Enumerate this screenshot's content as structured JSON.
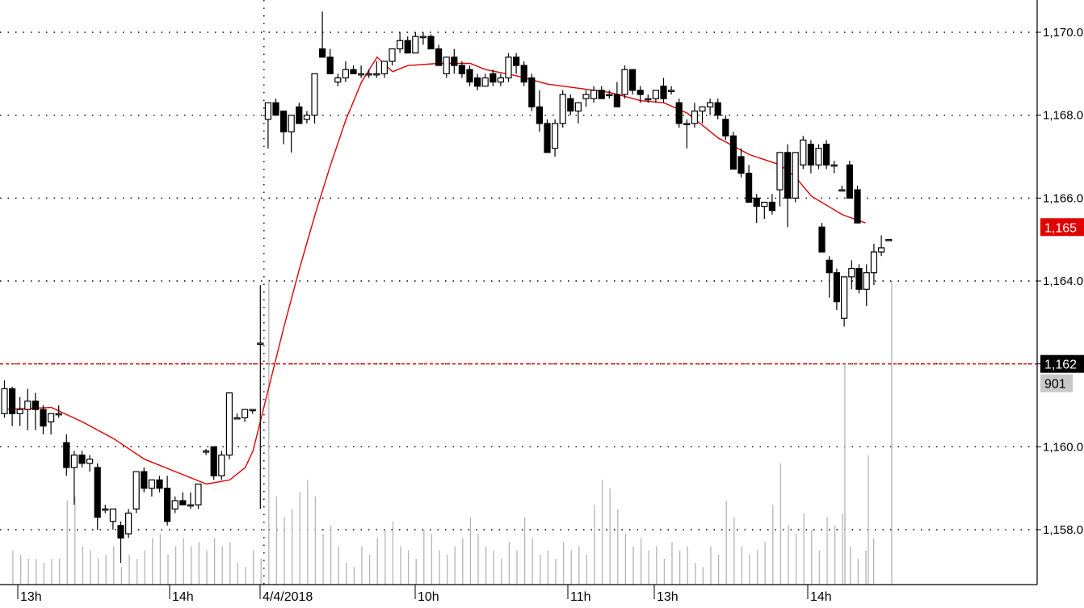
{
  "chart_data": {
    "type": "candlestick",
    "instrument_hint": "",
    "y_axis": {
      "ticks": [
        "1,170.0",
        "1,168.0",
        "1,166.0",
        "1,164.0",
        "1,162.0",
        "1,160.0",
        "1,158.0"
      ],
      "tick_values": [
        1170,
        1168,
        1166,
        1164,
        1162,
        1160,
        1158
      ],
      "ylim": [
        1156.8,
        1170.8
      ],
      "position": "right",
      "grid": "dotted"
    },
    "x_axis": {
      "labels": [
        "13h",
        "14h",
        "4/4/2018",
        "10h",
        "11h",
        "13h",
        "14h"
      ],
      "label_bar_index": [
        2,
        21,
        33,
        54,
        73,
        84,
        103
      ],
      "bar_count": 112,
      "grid_lines_at_bar": [
        33
      ]
    },
    "price_markers": [
      {
        "name": "last",
        "label": "1,165",
        "value": 1165.3,
        "color": "#e00000",
        "text_color": "#ffffff"
      },
      {
        "name": "level",
        "label": "1,162",
        "value": 1162.0,
        "color": "#000000",
        "text_color": "#ffffff"
      }
    ],
    "volume_marker": {
      "label": "901",
      "color": "#c8c8c8",
      "text_color": "#000000"
    },
    "reference_line": {
      "value": 1162.0,
      "style": "dashed",
      "color": "#e00000"
    },
    "moving_average": {
      "color": "#e00000",
      "points": [
        [
          0,
          1160.9
        ],
        [
          6,
          1160.95
        ],
        [
          10,
          1160.6
        ],
        [
          14,
          1160.2
        ],
        [
          18,
          1159.7
        ],
        [
          22,
          1159.4
        ],
        [
          26,
          1159.1
        ],
        [
          29,
          1159.2
        ],
        [
          31,
          1159.5
        ],
        [
          32,
          1159.9
        ],
        [
          34,
          1161.4
        ],
        [
          36,
          1162.9
        ],
        [
          38,
          1164.3
        ],
        [
          40,
          1165.6
        ],
        [
          42,
          1166.8
        ],
        [
          44,
          1167.9
        ],
        [
          46,
          1168.8
        ],
        [
          48,
          1169.4
        ],
        [
          50,
          1169.05
        ],
        [
          52,
          1169.2
        ],
        [
          56,
          1169.25
        ],
        [
          60,
          1169.25
        ],
        [
          62,
          1169.1
        ],
        [
          66,
          1168.95
        ],
        [
          70,
          1168.75
        ],
        [
          74,
          1168.65
        ],
        [
          78,
          1168.55
        ],
        [
          82,
          1168.35
        ],
        [
          85,
          1168.3
        ],
        [
          88,
          1168.05
        ],
        [
          92,
          1167.45
        ],
        [
          96,
          1167.05
        ],
        [
          100,
          1166.8
        ],
        [
          102,
          1166.5
        ],
        [
          104,
          1166.05
        ],
        [
          108,
          1165.6
        ],
        [
          111,
          1165.4
        ]
      ]
    },
    "candles": [
      [
        1160.8,
        1161.6,
        1160.7,
        1161.4
      ],
      [
        1161.4,
        1161.45,
        1160.5,
        1160.8
      ],
      [
        1160.8,
        1161.2,
        1160.5,
        1160.9
      ],
      [
        1160.9,
        1161.4,
        1160.4,
        1161.1
      ],
      [
        1161.1,
        1161.3,
        1160.4,
        1160.9
      ],
      [
        1160.9,
        1161.0,
        1160.3,
        1160.5
      ],
      [
        1160.6,
        1160.7,
        1160.3,
        1160.8
      ],
      [
        1160.8,
        1161.0,
        1160.7,
        1160.8
      ],
      [
        1160.1,
        1160.3,
        1159.3,
        1159.5
      ],
      [
        1159.5,
        1159.9,
        1158.6,
        1159.8
      ],
      [
        1159.8,
        1159.9,
        1159.5,
        1159.6
      ],
      [
        1159.6,
        1159.8,
        1159.4,
        1159.7
      ],
      [
        1159.5,
        1159.6,
        1158.0,
        1158.3
      ],
      [
        1158.5,
        1158.6,
        1158.4,
        1158.5
      ],
      [
        1158.2,
        1158.5,
        1158.0,
        1158.5
      ],
      [
        1158.1,
        1158.2,
        1157.2,
        1157.8
      ],
      [
        1157.9,
        1158.5,
        1157.8,
        1158.4
      ],
      [
        1158.5,
        1159.4,
        1158.4,
        1159.4
      ],
      [
        1159.4,
        1159.5,
        1158.9,
        1159.0
      ],
      [
        1159.0,
        1159.2,
        1158.8,
        1159.2
      ],
      [
        1159.2,
        1159.3,
        1158.9,
        1159.0
      ],
      [
        1159.0,
        1159.3,
        1158.1,
        1158.2
      ],
      [
        1158.5,
        1158.8,
        1158.4,
        1158.7
      ],
      [
        1158.7,
        1158.9,
        1158.6,
        1158.6
      ],
      [
        1158.6,
        1158.9,
        1158.5,
        1158.6
      ],
      [
        1158.6,
        1159.0,
        1158.5,
        1159.1
      ],
      [
        1159.9,
        1159.95,
        1159.8,
        1159.9
      ],
      [
        1160.0,
        1160.0,
        1159.2,
        1159.3
      ],
      [
        1159.3,
        1159.9,
        1159.2,
        1159.8
      ],
      [
        1159.8,
        1161.3,
        1159.7,
        1161.3
      ],
      [
        1160.7,
        1160.8,
        1160.7,
        1160.7
      ],
      [
        1160.7,
        1160.9,
        1160.6,
        1160.9
      ],
      [
        1160.9,
        1160.9,
        1160.8,
        1160.9
      ],
      [
        1162.5,
        1163.9,
        1158.5,
        1162.5
      ],
      [
        1167.9,
        1168.3,
        1167.2,
        1168.3
      ],
      [
        1168.3,
        1168.4,
        1168.0,
        1168.0
      ],
      [
        1168.1,
        1168.1,
        1167.3,
        1167.6
      ],
      [
        1167.6,
        1168.0,
        1167.1,
        1168.0
      ],
      [
        1168.2,
        1168.3,
        1167.8,
        1167.8
      ],
      [
        1167.9,
        1168.1,
        1167.8,
        1168.0
      ],
      [
        1168.0,
        1169.0,
        1167.8,
        1169.0
      ],
      [
        1169.6,
        1170.5,
        1169.4,
        1169.4
      ],
      [
        1169.4,
        1169.6,
        1169.0,
        1169.0
      ],
      [
        1168.8,
        1169.0,
        1168.7,
        1168.9
      ],
      [
        1168.9,
        1169.3,
        1168.8,
        1169.1
      ],
      [
        1169.1,
        1169.2,
        1169.0,
        1169.0
      ],
      [
        1169.0,
        1169.2,
        1168.9,
        1169.0
      ],
      [
        1169.0,
        1169.1,
        1168.9,
        1169.0
      ],
      [
        1169.0,
        1169.3,
        1168.9,
        1169.0
      ],
      [
        1169.0,
        1169.2,
        1168.9,
        1169.3
      ],
      [
        1169.3,
        1169.6,
        1169.2,
        1169.6
      ],
      [
        1169.6,
        1170.0,
        1169.5,
        1169.8
      ],
      [
        1169.8,
        1169.9,
        1169.5,
        1169.5
      ],
      [
        1169.5,
        1170.0,
        1169.5,
        1169.9
      ],
      [
        1169.9,
        1170.0,
        1169.7,
        1169.9
      ],
      [
        1169.9,
        1169.95,
        1169.6,
        1169.6
      ],
      [
        1169.6,
        1169.7,
        1169.2,
        1169.2
      ],
      [
        1169.0,
        1169.4,
        1168.9,
        1169.4
      ],
      [
        1169.4,
        1169.6,
        1169.0,
        1169.2
      ],
      [
        1169.2,
        1169.3,
        1168.9,
        1169.0
      ],
      [
        1169.1,
        1169.2,
        1168.7,
        1168.8
      ],
      [
        1168.9,
        1169.0,
        1168.6,
        1168.7
      ],
      [
        1168.7,
        1169.0,
        1168.7,
        1168.9
      ],
      [
        1169.0,
        1169.1,
        1168.7,
        1168.8
      ],
      [
        1168.8,
        1169.0,
        1168.7,
        1168.9
      ],
      [
        1168.9,
        1169.5,
        1168.8,
        1169.4
      ],
      [
        1169.4,
        1169.5,
        1169.0,
        1169.2
      ],
      [
        1169.2,
        1169.3,
        1168.7,
        1168.8
      ],
      [
        1168.9,
        1169.0,
        1168.1,
        1168.2
      ],
      [
        1168.2,
        1168.6,
        1167.6,
        1167.8
      ],
      [
        1167.8,
        1167.9,
        1167.1,
        1167.1
      ],
      [
        1167.2,
        1167.9,
        1167.0,
        1167.8
      ],
      [
        1167.8,
        1168.6,
        1167.7,
        1168.5
      ],
      [
        1168.4,
        1168.5,
        1168.0,
        1168.1
      ],
      [
        1168.1,
        1168.3,
        1167.8,
        1168.3
      ],
      [
        1168.4,
        1168.6,
        1168.2,
        1168.5
      ],
      [
        1168.4,
        1168.7,
        1168.3,
        1168.6
      ],
      [
        1168.6,
        1168.7,
        1168.4,
        1168.4
      ],
      [
        1168.5,
        1168.6,
        1168.4,
        1168.5
      ],
      [
        1168.5,
        1168.8,
        1168.2,
        1168.2
      ],
      [
        1168.5,
        1169.2,
        1168.4,
        1169.1
      ],
      [
        1169.1,
        1169.1,
        1168.5,
        1168.6
      ],
      [
        1168.6,
        1168.7,
        1168.3,
        1168.5
      ],
      [
        1168.4,
        1168.5,
        1168.3,
        1168.4
      ],
      [
        1168.4,
        1168.6,
        1168.3,
        1168.6
      ],
      [
        1168.7,
        1168.9,
        1168.3,
        1168.4
      ],
      [
        1168.6,
        1168.7,
        1168.5,
        1168.6
      ],
      [
        1168.3,
        1168.4,
        1167.7,
        1167.8
      ],
      [
        1167.8,
        1167.9,
        1167.2,
        1167.8
      ],
      [
        1167.8,
        1168.3,
        1167.7,
        1168.1
      ],
      [
        1168.1,
        1168.2,
        1167.8,
        1168.2
      ],
      [
        1168.2,
        1168.4,
        1168.0,
        1168.3
      ],
      [
        1168.3,
        1168.4,
        1167.9,
        1168.0
      ],
      [
        1167.9,
        1168.0,
        1167.4,
        1167.5
      ],
      [
        1167.5,
        1167.6,
        1166.7,
        1166.7
      ],
      [
        1167.0,
        1167.2,
        1166.5,
        1166.6
      ],
      [
        1166.6,
        1166.8,
        1165.9,
        1165.9
      ],
      [
        1166.0,
        1166.1,
        1165.4,
        1165.8
      ],
      [
        1165.8,
        1165.9,
        1165.5,
        1165.9
      ],
      [
        1165.9,
        1166.1,
        1165.6,
        1165.7
      ],
      [
        1166.2,
        1167.1,
        1165.8,
        1167.1
      ],
      [
        1167.1,
        1167.3,
        1165.3,
        1166.0
      ],
      [
        1166.0,
        1167.1,
        1165.9,
        1167.1
      ],
      [
        1166.8,
        1167.5,
        1166.7,
        1167.4
      ],
      [
        1167.3,
        1167.4,
        1166.6,
        1166.8
      ],
      [
        1166.8,
        1167.3,
        1166.7,
        1167.2
      ],
      [
        1167.3,
        1167.4,
        1166.7,
        1166.8
      ],
      [
        1166.8,
        1166.9,
        1166.6,
        1166.8
      ],
      [
        1166.2,
        1166.3,
        1166.2,
        1166.2
      ],
      [
        1166.8,
        1166.9,
        1166.0,
        1166.0
      ],
      [
        1166.2,
        1166.3,
        1165.4,
        1165.4
      ]
    ],
    "tail_candles": [
      [
        1165.3,
        1165.4,
        1164.7,
        1164.7
      ],
      [
        1164.5,
        1164.6,
        1163.6,
        1164.2
      ],
      [
        1164.2,
        1164.3,
        1163.3,
        1163.5
      ],
      [
        1163.1,
        1164.1,
        1162.9,
        1164.1
      ],
      [
        1164.1,
        1164.5,
        1163.8,
        1164.3
      ],
      [
        1164.3,
        1164.4,
        1163.7,
        1163.8
      ],
      [
        1163.8,
        1164.4,
        1163.4,
        1164.2
      ],
      [
        1164.2,
        1164.9,
        1163.9,
        1164.7
      ],
      [
        1164.7,
        1165.1,
        1164.6,
        1164.8
      ],
      [
        1165.0,
        1165.0,
        1165.0,
        1165.0
      ]
    ],
    "volume": {
      "label": "901",
      "baseline_value": 1157.05,
      "bars": [
        1157.5,
        1157.4,
        1157.3,
        1157.3,
        1157.2,
        1157.3,
        1157.3,
        1158.7,
        1158.8,
        1157.6,
        1157.5,
        1157.3,
        1157.4,
        1157.6,
        1157.1,
        1157.4,
        1157.3,
        1157.5,
        1157.8,
        1157.9,
        1157.4,
        1157.6,
        1157.8,
        1157.6,
        1157.7,
        1157.5,
        1157.8,
        1157.6,
        1157.7,
        1157.2,
        1157.1,
        1157.5,
        1157.3,
        1164.0,
        1158.8,
        1158.3,
        1158.5,
        1158.9,
        1159.2,
        1158.8,
        1157.9,
        1158.1,
        1157.6,
        1157.2,
        1157.1,
        1157.6,
        1157.4,
        1157.8,
        1158.0,
        1158.2,
        1157.6,
        1157.5,
        1157.3,
        1158.0,
        1157.9,
        1157.5,
        1157.4,
        1157.6,
        1157.8,
        1158.3,
        1157.9,
        1157.6,
        1157.5,
        1157.3,
        1157.7,
        1157.5,
        1158.3,
        1157.8,
        1157.4,
        1157.5,
        1157.3,
        1157.7,
        1157.5,
        1157.6,
        1157.4,
        1158.6,
        1159.2,
        1159.0,
        1158.5,
        1157.9,
        1157.6,
        1157.8,
        1157.5,
        1157.6,
        1157.3,
        1157.7,
        1157.5,
        1157.6,
        1157.2,
        1157.1,
        1157.6,
        1157.4,
        1158.7,
        1158.3,
        1157.6,
        1157.4,
        1157.5,
        1157.7,
        1158.6,
        1159.6,
        1158.1,
        1157.9,
        1158.4,
        1158.0,
        1157.5,
        1158.3,
        1158.1,
        1158.4,
        1157.6,
        1157.3,
        1157.5,
        1157.8
      ]
    },
    "title": "",
    "xlabel": "",
    "ylabel": ""
  }
}
